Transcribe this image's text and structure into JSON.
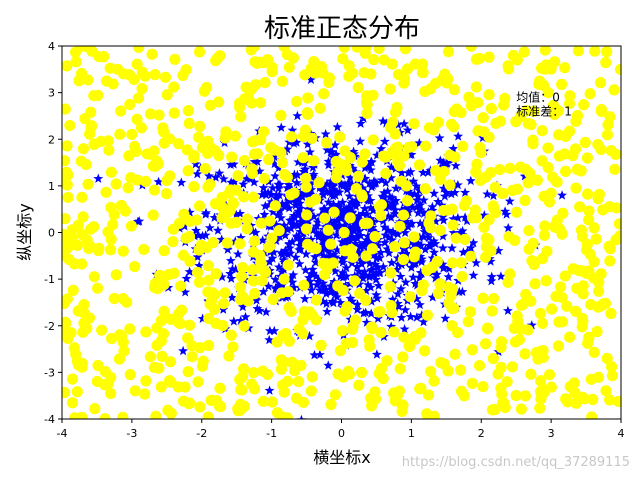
{
  "chart_data": {
    "type": "scatter",
    "title": "标准正态分布",
    "xlabel": "横坐标x",
    "ylabel": "纵坐标y",
    "xlim": [
      -4,
      4
    ],
    "ylim": [
      -4,
      4
    ],
    "xticks": [
      "-4",
      "-3",
      "-2",
      "-1",
      "0",
      "1",
      "2",
      "3",
      "4"
    ],
    "yticks": [
      "-4",
      "-3",
      "-2",
      "-1",
      "0",
      "1",
      "2",
      "3",
      "4"
    ],
    "grid": false,
    "legend": "none",
    "annotation": {
      "lines": [
        "均值：0",
        "标准差：1"
      ],
      "x": 2.5,
      "y": 2.9
    },
    "series": [
      {
        "marker": "star",
        "color": "#0000ff",
        "count": 1000,
        "distribution": "normal",
        "x": [
          -0.62,
          0.34,
          -0.12,
          0.88,
          -1.21,
          0.05,
          0.47,
          -0.55,
          1.12,
          -0.31,
          0.23,
          -0.87,
          0.66,
          -0.04,
          1.45,
          -1.52,
          0.19,
          -0.73,
          0.91,
          -0.26
        ],
        "y": [
          0.41,
          -0.22,
          0.78,
          0.15,
          -0.66,
          1.02,
          -0.48,
          0.29,
          -0.11,
          -1.24,
          0.64,
          0.08,
          -0.85,
          1.37,
          0.33,
          -0.19,
          -0.57,
          0.92,
          0.51,
          -0.09
        ]
      },
      {
        "marker": "circle",
        "color": "#ffff00",
        "count": 1000,
        "distribution": "uniform",
        "x": [
          -3.72,
          2.85,
          -1.46,
          3.31,
          -2.64,
          0.77,
          -3.15,
          1.93,
          3.68,
          -0.58,
          2.21,
          -2.96,
          1.12,
          -3.54,
          3.05,
          -1.88,
          0.36,
          2.57,
          -2.17,
          3.84
        ],
        "y": [
          3.41,
          -3.18,
          2.77,
          1.65,
          -2.42,
          -3.61,
          0.58,
          3.12,
          -1.26,
          -2.85,
          2.34,
          -0.73,
          -3.35,
          1.89,
          3.66,
          -1.54,
          2.93,
          -2.07,
          0.24,
          -0.61
        ]
      }
    ],
    "watermark": "https://blog.csdn.net/qq_37289115"
  }
}
